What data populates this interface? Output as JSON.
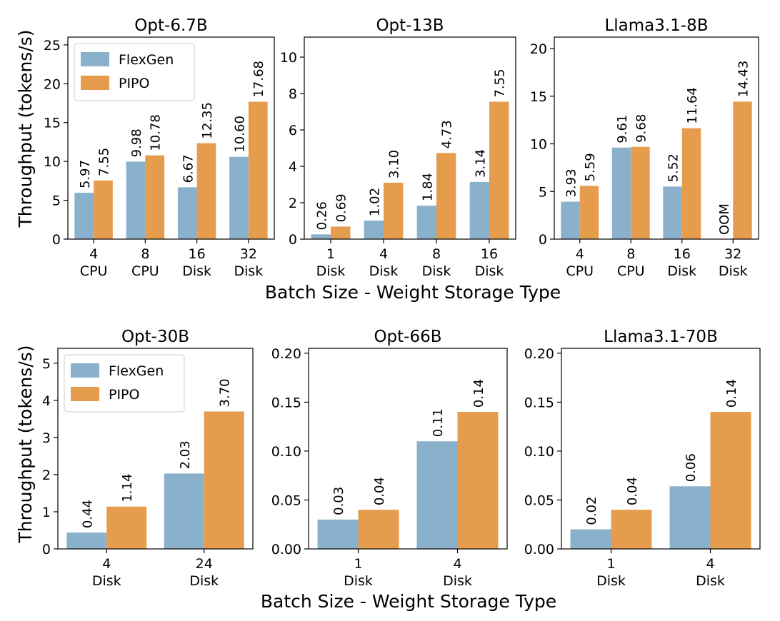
{
  "figure": {
    "ylabel": "Throughput (tokens/s)",
    "xlabel": "Batch Size - Weight Storage Type"
  },
  "colors": {
    "flexgen": "#8ab1cc",
    "pipo": "#e69c4d"
  },
  "chart_data": [
    {
      "type": "bar",
      "title": "Opt-6.7B",
      "categories": [
        [
          "4",
          "CPU"
        ],
        [
          "8",
          "CPU"
        ],
        [
          "16",
          "Disk"
        ],
        [
          "32",
          "Disk"
        ]
      ],
      "series": [
        {
          "name": "FlexGen",
          "values": [
            5.97,
            9.98,
            6.67,
            10.6
          ],
          "labels": [
            "5.97",
            "9.98",
            "6.67",
            "10.60"
          ]
        },
        {
          "name": "PIPO",
          "values": [
            7.55,
            10.78,
            12.35,
            17.68
          ],
          "labels": [
            "7.55",
            "10.78",
            "12.35",
            "17.68"
          ]
        }
      ],
      "ylim": [
        0,
        26
      ],
      "yticks": [
        "0",
        "5",
        "10",
        "15",
        "20",
        "25"
      ],
      "legend": "top-left"
    },
    {
      "type": "bar",
      "title": "Opt-13B",
      "categories": [
        [
          "1",
          "Disk"
        ],
        [
          "4",
          "Disk"
        ],
        [
          "8",
          "Disk"
        ],
        [
          "16",
          "Disk"
        ]
      ],
      "series": [
        {
          "name": "FlexGen",
          "values": [
            0.26,
            1.02,
            1.84,
            3.14
          ],
          "labels": [
            "0.26",
            "1.02",
            "1.84",
            "3.14"
          ]
        },
        {
          "name": "PIPO",
          "values": [
            0.69,
            3.1,
            4.73,
            7.55
          ],
          "labels": [
            "0.69",
            "3.10",
            "4.73",
            "7.55"
          ]
        }
      ],
      "ylim": [
        0,
        11.1
      ],
      "yticks": [
        "0",
        "2",
        "4",
        "6",
        "8",
        "10"
      ]
    },
    {
      "type": "bar",
      "title": "Llama3.1-8B",
      "categories": [
        [
          "4",
          "CPU"
        ],
        [
          "8",
          "CPU"
        ],
        [
          "16",
          "Disk"
        ],
        [
          "32",
          "Disk"
        ]
      ],
      "series": [
        {
          "name": "FlexGen",
          "values": [
            3.93,
            9.61,
            5.52,
            0
          ],
          "labels": [
            "3.93",
            "9.61",
            "5.52",
            "OOM"
          ]
        },
        {
          "name": "PIPO",
          "values": [
            5.59,
            9.68,
            11.64,
            14.43
          ],
          "labels": [
            "5.59",
            "9.68",
            "11.64",
            "14.43"
          ]
        }
      ],
      "ylim": [
        0,
        21.2
      ],
      "yticks": [
        "0",
        "5",
        "10",
        "15",
        "20"
      ]
    },
    {
      "type": "bar",
      "title": "Opt-30B",
      "categories": [
        [
          "4",
          "Disk"
        ],
        [
          "24",
          "Disk"
        ]
      ],
      "series": [
        {
          "name": "FlexGen",
          "values": [
            0.44,
            2.03
          ],
          "labels": [
            "0.44",
            "2.03"
          ]
        },
        {
          "name": "PIPO",
          "values": [
            1.14,
            3.7
          ],
          "labels": [
            "1.14",
            "3.70"
          ]
        }
      ],
      "ylim": [
        0,
        5.4
      ],
      "yticks": [
        "0",
        "1",
        "2",
        "3",
        "4",
        "5"
      ],
      "legend": "top-left"
    },
    {
      "type": "bar",
      "title": "Opt-66B",
      "categories": [
        [
          "1",
          "Disk"
        ],
        [
          "4",
          "Disk"
        ]
      ],
      "series": [
        {
          "name": "FlexGen",
          "values": [
            0.03,
            0.11
          ],
          "labels": [
            "0.03",
            "0.11"
          ]
        },
        {
          "name": "PIPO",
          "values": [
            0.04,
            0.14
          ],
          "labels": [
            "0.04",
            "0.14"
          ]
        }
      ],
      "ylim": [
        0,
        0.205
      ],
      "yticks": [
        "0.00",
        "0.05",
        "0.10",
        "0.15",
        "0.20"
      ]
    },
    {
      "type": "bar",
      "title": "Llama3.1-70B",
      "categories": [
        [
          "1",
          "Disk"
        ],
        [
          "4",
          "Disk"
        ]
      ],
      "series": [
        {
          "name": "FlexGen",
          "values": [
            0.02,
            0.064
          ],
          "labels": [
            "0.02",
            "0.06"
          ]
        },
        {
          "name": "PIPO",
          "values": [
            0.04,
            0.14
          ],
          "labels": [
            "0.04",
            "0.14"
          ]
        }
      ],
      "ylim": [
        0,
        0.205
      ],
      "yticks": [
        "0.00",
        "0.05",
        "0.10",
        "0.15",
        "0.20"
      ]
    }
  ]
}
